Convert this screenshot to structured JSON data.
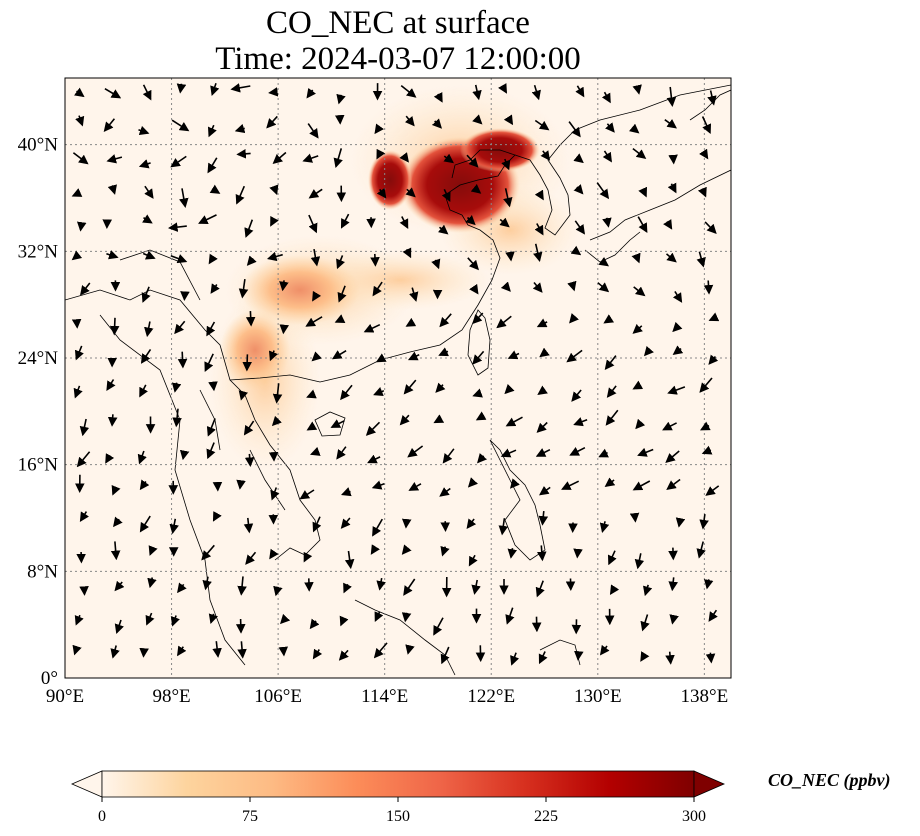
{
  "title": {
    "line1": "CO_NEC at surface",
    "line2": "Time: 2024-03-07 12:00:00"
  },
  "map": {
    "lon_range": [
      90,
      140
    ],
    "lat_range": [
      0,
      45
    ],
    "lon_ticks": [
      {
        "value": 90,
        "label": "90°E"
      },
      {
        "value": 98,
        "label": "98°E"
      },
      {
        "value": 106,
        "label": "106°E"
      },
      {
        "value": 114,
        "label": "114°E"
      },
      {
        "value": 122,
        "label": "122°E"
      },
      {
        "value": 130,
        "label": "130°E"
      },
      {
        "value": 138,
        "label": "138°E"
      }
    ],
    "lat_ticks": [
      {
        "value": 0,
        "label": "0°"
      },
      {
        "value": 8,
        "label": "8°N"
      },
      {
        "value": 16,
        "label": "16°N"
      },
      {
        "value": 24,
        "label": "24°N"
      },
      {
        "value": 32,
        "label": "32°N"
      },
      {
        "value": 40,
        "label": "40°N"
      }
    ],
    "gridlines": true,
    "background_color": "#fff5eb",
    "land_outline_color": "#000000",
    "wind_vectors": true
  },
  "colorbar": {
    "label": "CO_NEC (ppbv)",
    "min": 0,
    "max": 300,
    "ticks": [
      {
        "value": 0,
        "label": "0"
      },
      {
        "value": 75,
        "label": "75"
      },
      {
        "value": 150,
        "label": "150"
      },
      {
        "value": 225,
        "label": "225"
      },
      {
        "value": 300,
        "label": "300"
      }
    ],
    "extend": "both",
    "colormap": "OrRd",
    "colors": [
      "#fff5eb",
      "#fdd49e",
      "#fdbb84",
      "#fc8d59",
      "#ef6548",
      "#d7301f",
      "#b30000",
      "#7f0000"
    ]
  }
}
